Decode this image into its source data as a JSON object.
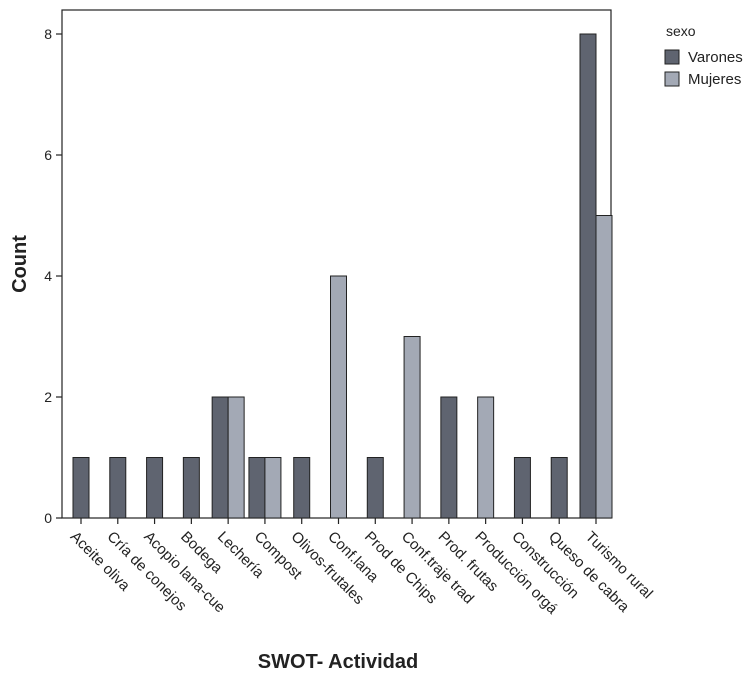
{
  "chart_data": {
    "type": "bar",
    "xlabel": "SWOT- Actividad",
    "ylabel": "Count",
    "ylim": [
      0,
      8
    ],
    "yticks": [
      0,
      2,
      4,
      6,
      8
    ],
    "legend_title": "sexo",
    "legend_position": "top-right",
    "grid": false,
    "categories": [
      "Aceite oliva",
      "Cría de conejos",
      "Acopio lana-cue",
      "Bodega",
      "Lechería",
      "Compost",
      "Olivos-frutales",
      "Conf.lana",
      "Prod de Chips",
      "Conf.traje trad",
      "Prod. frutas",
      "Producción orgá",
      "Construcción",
      "Queso de cabra",
      "Turismo rural"
    ],
    "series": [
      {
        "name": "Varones",
        "color": "#5f6470",
        "values": [
          1,
          1,
          1,
          1,
          2,
          1,
          1,
          0,
          1,
          0,
          2,
          0,
          1,
          1,
          8
        ]
      },
      {
        "name": "Mujeres",
        "color": "#a3a9b5",
        "values": [
          0,
          0,
          0,
          0,
          2,
          1,
          0,
          4,
          0,
          3,
          0,
          2,
          0,
          0,
          5
        ]
      }
    ]
  }
}
